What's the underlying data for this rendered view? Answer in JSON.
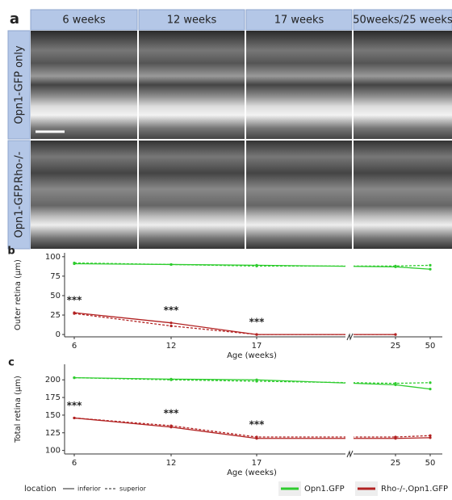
{
  "panel_a": {
    "letter": "a",
    "columns": [
      "6 weeks",
      "12 weeks",
      "17 weeks",
      "50weeks/25 weeks"
    ],
    "rows": [
      "Opn1-GFP only",
      "Opn1-GFP.Rho-/-"
    ]
  },
  "charts": [
    {
      "type": "line",
      "letter": "b",
      "y_label": "Outer retina (μm)",
      "x_label": "Age (weeks)",
      "categories": [
        "6",
        "12",
        "17",
        "25",
        "50"
      ],
      "ylim": [
        -3,
        105
      ],
      "yticks": [
        0,
        25,
        50,
        75,
        100
      ],
      "annotations": [
        {
          "label": "***",
          "category": "6"
        },
        {
          "label": "***",
          "category": "12"
        },
        {
          "label": "***",
          "category": "17"
        }
      ],
      "series": [
        {
          "name": "Opn1.GFP",
          "color": "#2ecc2e",
          "inferior": [
            91,
            90,
            89,
            87,
            84
          ],
          "superior": [
            92,
            90,
            88,
            88,
            89
          ]
        },
        {
          "name": "Rho-/-,Opn1.GFP",
          "color": "#b22222",
          "inferior": [
            28,
            15,
            0,
            0,
            null
          ],
          "superior": [
            27,
            11,
            0,
            0,
            null
          ]
        }
      ]
    },
    {
      "type": "line",
      "letter": "c",
      "y_label": "Total retina (μm)",
      "x_label": "Age (weeks)",
      "categories": [
        "6",
        "12",
        "17",
        "25",
        "50"
      ],
      "ylim": [
        95,
        222
      ],
      "yticks": [
        100,
        125,
        150,
        175,
        200
      ],
      "annotations": [
        {
          "label": "***",
          "category": "6"
        },
        {
          "label": "***",
          "category": "12"
        },
        {
          "label": "***",
          "category": "17"
        }
      ],
      "series": [
        {
          "name": "Opn1.GFP",
          "color": "#2ecc2e",
          "inferior": [
            203,
            201,
            200,
            193,
            187
          ],
          "superior": [
            203,
            200,
            198,
            195,
            196
          ]
        },
        {
          "name": "Rho-/-,Opn1.GFP",
          "color": "#b22222",
          "inferior": [
            146,
            133,
            117,
            117,
            118
          ],
          "superior": [
            146,
            135,
            119,
            119,
            121
          ]
        }
      ]
    }
  ],
  "legend": {
    "title": "location",
    "styles": [
      "inferior",
      "superior"
    ]
  }
}
